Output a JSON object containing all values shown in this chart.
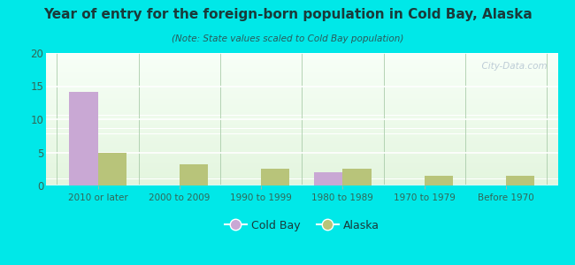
{
  "title": "Year of entry for the foreign-born population in Cold Bay, Alaska",
  "subtitle": "(Note: State values scaled to Cold Bay population)",
  "categories": [
    "2010 or later",
    "2000 to 2009",
    "1990 to 1999",
    "1980 to 1989",
    "1970 to 1979",
    "Before 1970"
  ],
  "cold_bay": [
    14.2,
    0,
    0,
    2.0,
    0,
    0
  ],
  "alaska": [
    5.0,
    3.2,
    2.5,
    2.5,
    1.5,
    1.5
  ],
  "cold_bay_color": "#c9a8d4",
  "alaska_color": "#b8c47a",
  "background_outer": "#00e8e8",
  "ylim": [
    0,
    20
  ],
  "yticks": [
    0,
    5,
    10,
    15,
    20
  ],
  "bar_width": 0.35,
  "watermark": "  City-Data.com",
  "legend_labels": [
    "Cold Bay",
    "Alaska"
  ],
  "title_color": "#1a3a3a",
  "subtitle_color": "#2a5a5a",
  "tick_color": "#336655",
  "grid_color": "#ccddcc"
}
